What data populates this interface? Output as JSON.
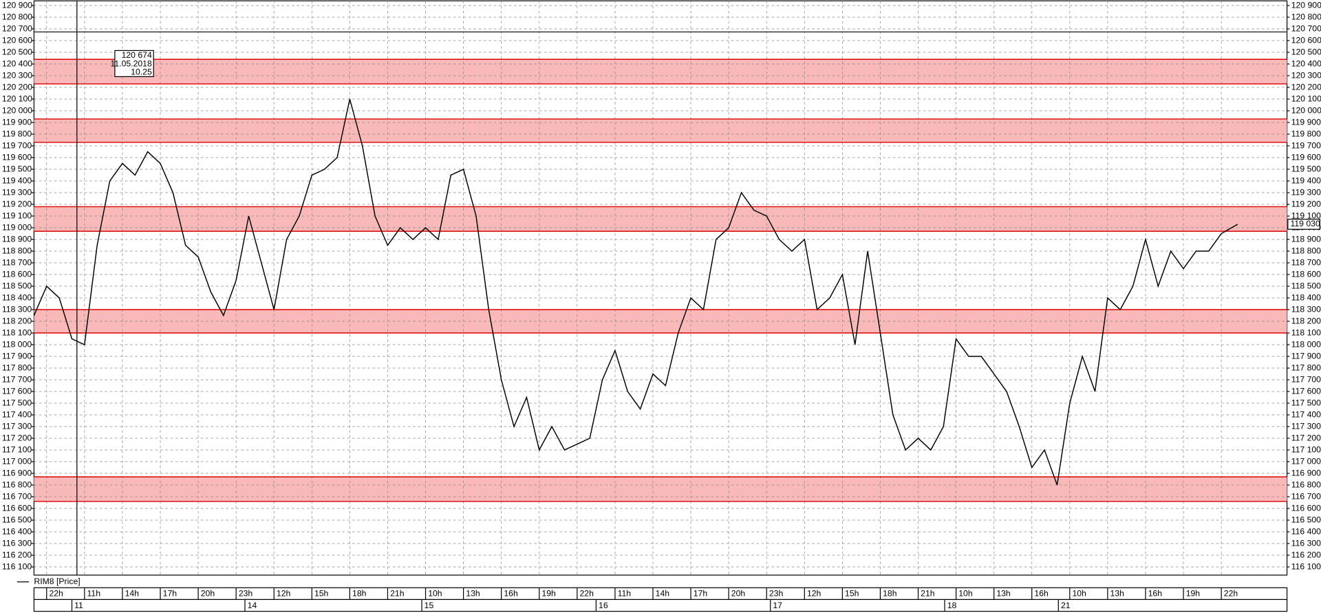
{
  "chart_data": {
    "type": "line",
    "series": [
      {
        "name": "RIM8 [Price]",
        "color": "#000000",
        "x": [
          0,
          1,
          2,
          3,
          4,
          5,
          6,
          7,
          8,
          9,
          10,
          11,
          12,
          13,
          14,
          15,
          16,
          17,
          18,
          19,
          20,
          21,
          22,
          23,
          24,
          25,
          26,
          27,
          28,
          29,
          30,
          31,
          32,
          33,
          34,
          35,
          36,
          37,
          38,
          39,
          40,
          41,
          42,
          43,
          44,
          45,
          46,
          47,
          48,
          49,
          50,
          51,
          52,
          53,
          54,
          55,
          56,
          57,
          58,
          59,
          60,
          61,
          62,
          63,
          64,
          65,
          66,
          67,
          68,
          69,
          70,
          71,
          72,
          73,
          74,
          75,
          76,
          77,
          78,
          79,
          80,
          81,
          82,
          83,
          84,
          85,
          86,
          87,
          88,
          89,
          90,
          91,
          92,
          93,
          94,
          95.3
        ],
        "values": [
          118250,
          118500,
          118400,
          118050,
          118000,
          118850,
          119400,
          119550,
          119450,
          119650,
          119550,
          119300,
          118850,
          118750,
          118450,
          118250,
          118550,
          119100,
          118700,
          118300,
          118900,
          119100,
          119450,
          119500,
          119600,
          120100,
          119700,
          119100,
          118850,
          119000,
          118900,
          119000,
          118900,
          119450,
          119500,
          119100,
          118300,
          117700,
          117300,
          117550,
          117100,
          117300,
          117100,
          117150,
          117200,
          117700,
          117950,
          117600,
          117450,
          117750,
          117650,
          118100,
          118400,
          118300,
          118900,
          119000,
          119300,
          119150,
          119100,
          118900,
          118800,
          118900,
          118300,
          118400,
          118600,
          118000,
          118800,
          118100,
          117400,
          117100,
          117200,
          117100,
          117300,
          118050,
          117900,
          117900,
          117750,
          117600,
          117300,
          116950,
          117100,
          116800,
          117500,
          117900,
          117600,
          118400,
          118300,
          118500,
          118900,
          118500,
          118800,
          118650,
          118800,
          118800,
          118950,
          119030
        ]
      }
    ],
    "current_price": {
      "value": 119030,
      "label": "119 030"
    },
    "zones": [
      [
        120230,
        120440
      ],
      [
        119730,
        119930
      ],
      [
        118970,
        119180
      ],
      [
        118100,
        118300
      ],
      [
        116660,
        116870
      ]
    ],
    "zone_color": "#f9b9b9",
    "zone_edge": "#dd0000",
    "crosshair": {
      "x": 3.4,
      "y": 120674,
      "price_label": "120 674",
      "date": "11.05.2018",
      "time": "10.25"
    },
    "xlim": [
      0,
      99.2
    ],
    "ylim": [
      116030,
      120940
    ],
    "grid": true,
    "xticks": [
      {
        "value": 1,
        "label": "22h"
      },
      {
        "value": 4,
        "label": "11h"
      },
      {
        "value": 7,
        "label": "14h"
      },
      {
        "value": 10,
        "label": "17h"
      },
      {
        "value": 13,
        "label": "20h"
      },
      {
        "value": 16,
        "label": "23h"
      },
      {
        "value": 19,
        "label": "12h"
      },
      {
        "value": 22,
        "label": "15h"
      },
      {
        "value": 25,
        "label": "18h"
      },
      {
        "value": 28,
        "label": "21h"
      },
      {
        "value": 31,
        "label": "10h"
      },
      {
        "value": 34,
        "label": "13h"
      },
      {
        "value": 37,
        "label": "16h"
      },
      {
        "value": 40,
        "label": "19h"
      },
      {
        "value": 43,
        "label": "22h"
      },
      {
        "value": 46,
        "label": "11h"
      },
      {
        "value": 49,
        "label": "14h"
      },
      {
        "value": 52,
        "label": "17h"
      },
      {
        "value": 55,
        "label": "20h"
      },
      {
        "value": 58,
        "label": "23h"
      },
      {
        "value": 61,
        "label": "12h"
      },
      {
        "value": 64,
        "label": "15h"
      },
      {
        "value": 67,
        "label": "18h"
      },
      {
        "value": 70,
        "label": "21h"
      },
      {
        "value": 73,
        "label": "10h"
      },
      {
        "value": 76,
        "label": "13h"
      },
      {
        "value": 79,
        "label": "16h"
      },
      {
        "value": 82,
        "label": "10h"
      },
      {
        "value": 85,
        "label": "13h"
      },
      {
        "value": 88,
        "label": "16h"
      },
      {
        "value": 91,
        "label": "19h"
      },
      {
        "value": 94,
        "label": "22h"
      }
    ],
    "date_ticks": [
      {
        "value": 3,
        "label": "11"
      },
      {
        "value": 16.7,
        "label": "14"
      },
      {
        "value": 30.7,
        "label": "15"
      },
      {
        "value": 44.5,
        "label": "16"
      },
      {
        "value": 58.3,
        "label": "17"
      },
      {
        "value": 72.1,
        "label": "18"
      },
      {
        "value": 81.1,
        "label": "21"
      }
    ],
    "yticks": [
      {
        "value": 116100,
        "label": "116 100"
      },
      {
        "value": 116200,
        "label": "116 200"
      },
      {
        "value": 116300,
        "label": "116 300"
      },
      {
        "value": 116400,
        "label": "116 400"
      },
      {
        "value": 116500,
        "label": "116 500"
      },
      {
        "value": 116600,
        "label": "116 600"
      },
      {
        "value": 116700,
        "label": "116 700"
      },
      {
        "value": 116800,
        "label": "116 800"
      },
      {
        "value": 116900,
        "label": "116 900"
      },
      {
        "value": 117000,
        "label": "117 000"
      },
      {
        "value": 117100,
        "label": "117 100"
      },
      {
        "value": 117200,
        "label": "117 200"
      },
      {
        "value": 117300,
        "label": "117 300"
      },
      {
        "value": 117400,
        "label": "117 400"
      },
      {
        "value": 117500,
        "label": "117 500"
      },
      {
        "value": 117600,
        "label": "117 600"
      },
      {
        "value": 117700,
        "label": "117 700"
      },
      {
        "value": 117800,
        "label": "117 800"
      },
      {
        "value": 117900,
        "label": "117 900"
      },
      {
        "value": 118000,
        "label": "118 000"
      },
      {
        "value": 118100,
        "label": "118 100"
      },
      {
        "value": 118200,
        "label": "118 200"
      },
      {
        "value": 118300,
        "label": "118 300"
      },
      {
        "value": 118400,
        "label": "118 400"
      },
      {
        "value": 118500,
        "label": "118 500"
      },
      {
        "value": 118600,
        "label": "118 600"
      },
      {
        "value": 118700,
        "label": "118 700"
      },
      {
        "value": 118800,
        "label": "118 800"
      },
      {
        "value": 118900,
        "label": "118 900"
      },
      {
        "value": 119000,
        "label": "119 000"
      },
      {
        "value": 119100,
        "label": "119 100"
      },
      {
        "value": 119200,
        "label": "119 200"
      },
      {
        "value": 119300,
        "label": "119 300"
      },
      {
        "value": 119400,
        "label": "119 400"
      },
      {
        "value": 119500,
        "label": "119 500"
      },
      {
        "value": 119600,
        "label": "119 600"
      },
      {
        "value": 119700,
        "label": "119 700"
      },
      {
        "value": 119800,
        "label": "119 800"
      },
      {
        "value": 119900,
        "label": "119 900"
      },
      {
        "value": 120000,
        "label": "120 000"
      },
      {
        "value": 120100,
        "label": "120 100"
      },
      {
        "value": 120200,
        "label": "120 200"
      },
      {
        "value": 120300,
        "label": "120 300"
      },
      {
        "value": 120400,
        "label": "120 400"
      },
      {
        "value": 120500,
        "label": "120 500"
      },
      {
        "value": 120600,
        "label": "120 600"
      },
      {
        "value": 120700,
        "label": "120 700"
      },
      {
        "value": 120800,
        "label": "120 800"
      },
      {
        "value": 120900,
        "label": "120 900"
      }
    ]
  }
}
